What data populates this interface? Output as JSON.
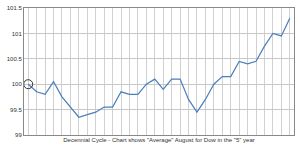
{
  "chart_data": {
    "type": "line",
    "x_label": "Decennial Cycle - Chart shows \"Average\" August for Dow in the \"5\" year",
    "categories": [
      null,
      null,
      null,
      null,
      null,
      null,
      null,
      null,
      null,
      null,
      null,
      null,
      null,
      null,
      null,
      null,
      null,
      null,
      null,
      null,
      null,
      null,
      null,
      null,
      null,
      null,
      null,
      null,
      null,
      null,
      null,
      null
    ],
    "values": [
      100.0,
      99.85,
      99.8,
      100.05,
      99.75,
      99.55,
      99.35,
      99.4,
      99.45,
      99.55,
      99.55,
      99.85,
      99.8,
      99.8,
      100.0,
      100.1,
      99.9,
      100.1,
      100.1,
      99.7,
      99.45,
      99.7,
      100.0,
      100.15,
      100.15,
      100.45,
      100.4,
      100.45,
      100.75,
      101.0,
      100.95,
      101.3
    ],
    "color": "#4a7ebb",
    "marker": "circle",
    "ylim": [
      99,
      101.5
    ],
    "yticks": [
      99,
      99.5,
      100,
      100.5,
      101,
      101.5
    ],
    "grid": true,
    "tick_labels": "y"
  }
}
